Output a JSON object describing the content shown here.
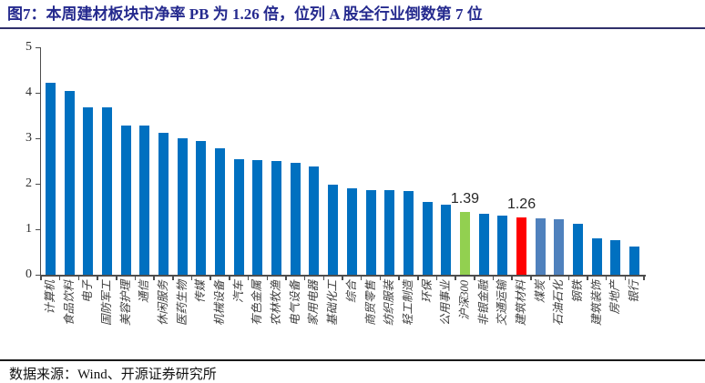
{
  "page": {
    "title": "图7：本周建材板块市净率 PB 为 1.26 倍，位列 A 股全行业倒数第 7 位",
    "source": "数据来源：Wind、开源证券研究所"
  },
  "chart_data": {
    "type": "bar",
    "title": "本周建材板块市净率PB为1.26倍，位列A股全行业倒数第7位",
    "xlabel": "",
    "ylabel": "",
    "ylim": [
      0,
      5
    ],
    "yticks": [
      0,
      1,
      2,
      3,
      4,
      5
    ],
    "grid": false,
    "legend": false,
    "categories": [
      "计算机",
      "食品饮料",
      "电子",
      "国防军工",
      "美容护理",
      "通信",
      "休闲服务",
      "医药生物",
      "传媒",
      "机械设备",
      "汽车",
      "有色金属",
      "农林牧渔",
      "电气设备",
      "家用电器",
      "基础化工",
      "综合",
      "商贸零售",
      "纺织服装",
      "轻工制造",
      "环保",
      "公用事业",
      "沪深300",
      "非银金融",
      "交通运输",
      "建筑材料",
      "煤炭",
      "石油石化",
      "钢铁",
      "建筑装饰",
      "房地产",
      "银行"
    ],
    "values": [
      4.22,
      4.04,
      3.69,
      3.68,
      3.29,
      3.28,
      3.13,
      3.0,
      2.95,
      2.78,
      2.54,
      2.53,
      2.51,
      2.47,
      2.38,
      1.99,
      1.91,
      1.87,
      1.86,
      1.84,
      1.6,
      1.54,
      1.39,
      1.35,
      1.31,
      1.26,
      1.25,
      1.23,
      1.12,
      0.8,
      0.77,
      0.62
    ],
    "bar_color_default": "#0070C0",
    "color_overrides": {
      "22": "#92D050",
      "25": "#FF0000",
      "26": "#4F81BD",
      "27": "#4F81BD"
    },
    "data_labels": {
      "22": "1.39",
      "25": "1.26"
    }
  }
}
